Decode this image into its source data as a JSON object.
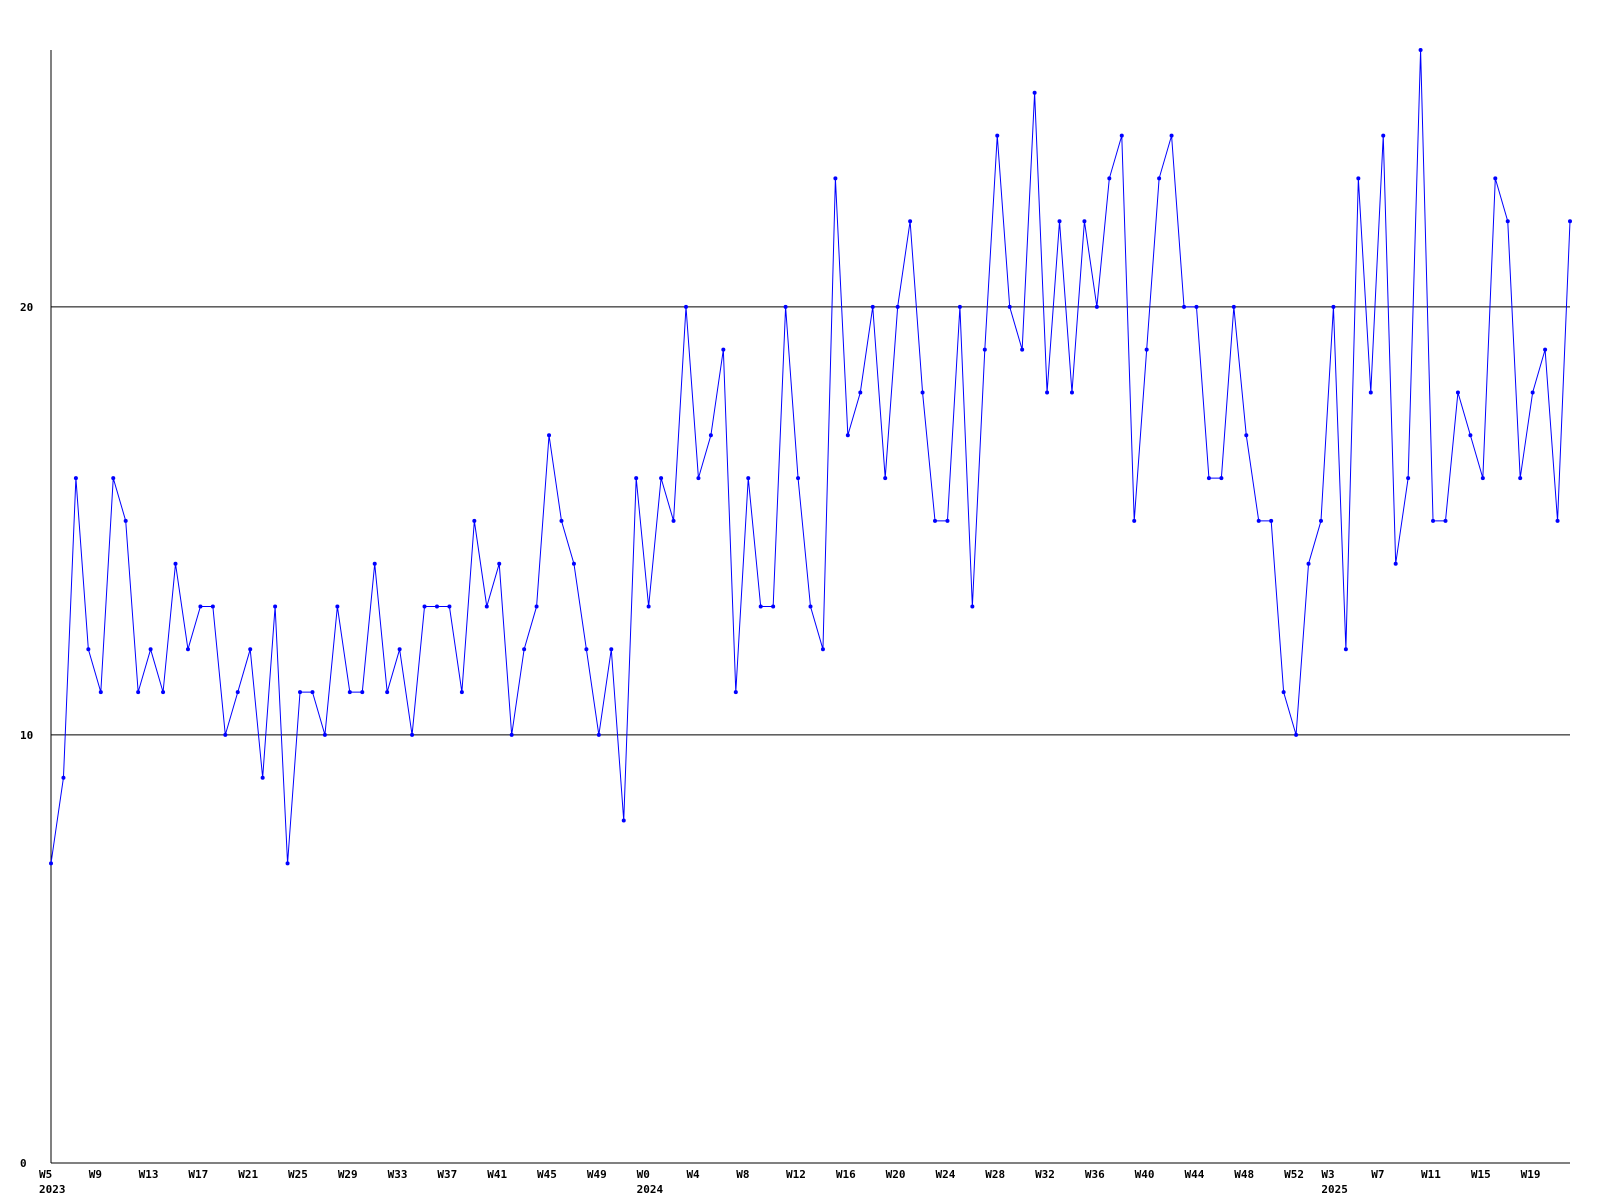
{
  "chart_data": {
    "type": "line",
    "title": "",
    "xlabel": "",
    "ylabel": "",
    "ylim": [
      0,
      26
    ],
    "grid": {
      "horizontal": true,
      "vertical": false
    },
    "y_ticks": [
      0,
      10,
      20
    ],
    "line_color": "#0000ff",
    "grid_color": "#000000",
    "x_tick_labels": [
      {
        "index": 0,
        "label": "W5",
        "year": "2023"
      },
      {
        "index": 4,
        "label": "W9"
      },
      {
        "index": 8,
        "label": "W13"
      },
      {
        "index": 12,
        "label": "W17"
      },
      {
        "index": 16,
        "label": "W21"
      },
      {
        "index": 20,
        "label": "W25"
      },
      {
        "index": 24,
        "label": "W29"
      },
      {
        "index": 28,
        "label": "W33"
      },
      {
        "index": 32,
        "label": "W37"
      },
      {
        "index": 36,
        "label": "W41"
      },
      {
        "index": 40,
        "label": "W45"
      },
      {
        "index": 44,
        "label": "W49"
      },
      {
        "index": 48,
        "label": "W0",
        "year": "2024"
      },
      {
        "index": 52,
        "label": "W4"
      },
      {
        "index": 56,
        "label": "W8"
      },
      {
        "index": 60,
        "label": "W12"
      },
      {
        "index": 64,
        "label": "W16"
      },
      {
        "index": 68,
        "label": "W20"
      },
      {
        "index": 72,
        "label": "W24"
      },
      {
        "index": 76,
        "label": "W28"
      },
      {
        "index": 80,
        "label": "W32"
      },
      {
        "index": 84,
        "label": "W36"
      },
      {
        "index": 88,
        "label": "W40"
      },
      {
        "index": 92,
        "label": "W44"
      },
      {
        "index": 96,
        "label": "W48"
      },
      {
        "index": 100,
        "label": "W52"
      },
      {
        "index": 103,
        "label": "W3",
        "year": "2025"
      },
      {
        "index": 107,
        "label": "W7"
      },
      {
        "index": 111,
        "label": "W11"
      },
      {
        "index": 115,
        "label": "W15"
      },
      {
        "index": 119,
        "label": "W19"
      }
    ],
    "series": [
      {
        "values": [
          7,
          9,
          16,
          12,
          11,
          16,
          15,
          11,
          12,
          11,
          14,
          12,
          13,
          13,
          10,
          11,
          12,
          9,
          13,
          7,
          11,
          11,
          10,
          13,
          11,
          11,
          14,
          11,
          12,
          10,
          13,
          13,
          13,
          11,
          15,
          13,
          14,
          10,
          12,
          13,
          17,
          15,
          14,
          12,
          10,
          12,
          8,
          16,
          13,
          16,
          15,
          20,
          16,
          17,
          19,
          11,
          16,
          13,
          13,
          20,
          16,
          13,
          12,
          23,
          17,
          18,
          20,
          16,
          20,
          22,
          18,
          15,
          15,
          20,
          13,
          19,
          24,
          20,
          19,
          25,
          18,
          22,
          18,
          22,
          20,
          23,
          24,
          15,
          19,
          23,
          24,
          20,
          20,
          16,
          16,
          20,
          17,
          15,
          15,
          11,
          10,
          14,
          15,
          20,
          12,
          23,
          18,
          24,
          14,
          16,
          26,
          15,
          15,
          18,
          17,
          16,
          23,
          22,
          16,
          18,
          19,
          15,
          22
        ]
      }
    ]
  }
}
